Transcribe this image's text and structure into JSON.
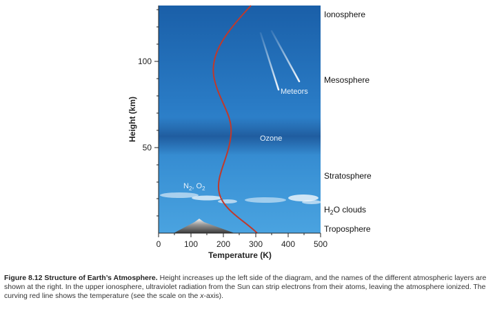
{
  "figure": {
    "axes": {
      "x_title": "Temperature (K)",
      "y_title": "Height (km)",
      "x_ticks": [
        "0",
        "100",
        "200",
        "300",
        "400",
        "500"
      ],
      "y_ticks": [
        "50",
        "100"
      ]
    },
    "layers": {
      "ionosphere": "Ionosphere",
      "mesosphere": "Mesosphere",
      "stratosphere": "Stratosphere",
      "h2o_clouds_prefix": "H",
      "h2o_clouds_sub": "2",
      "h2o_clouds_suffix": "O clouds",
      "troposphere": "Troposphere"
    },
    "labels": {
      "meteors": "Meteors",
      "ozone": "Ozone",
      "n2_a": "N",
      "n2_sub": "2",
      "n2_sep": ", O",
      "o2_sub": "2"
    },
    "colors": {
      "sky_top": "#1a5fa8",
      "sky_bottom": "#4aa3e0",
      "ozone_band": "#1a4f90",
      "temperature_curve": "#c0392b"
    }
  },
  "caption": {
    "label": "Figure 8.12 Structure of Earth’s Atmosphere.",
    "text_a": " Height increases up the left side of the diagram, and the names of the different atmospheric layers are shown at the right. In the upper ionosphere, ultraviolet radiation from the Sun can strip electrons from their atoms, leaving the atmosphere ionized. The curving red line shows the temperature (see the scale on the ",
    "x_axis": "x",
    "text_b": "-axis)."
  }
}
